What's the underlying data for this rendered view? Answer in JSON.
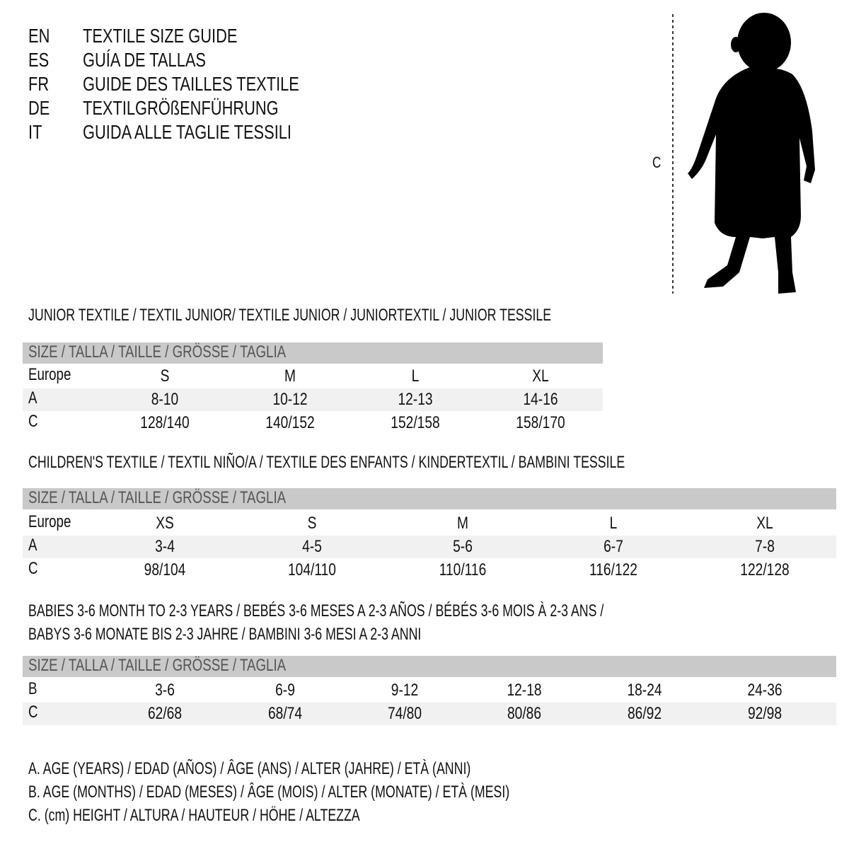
{
  "titles": [
    {
      "code": "EN",
      "text": "TEXTILE SIZE GUIDE"
    },
    {
      "code": "ES",
      "text": "GUÍA DE TALLAS"
    },
    {
      "code": "FR",
      "text": "GUIDE DES TAILLES TEXTILE"
    },
    {
      "code": "DE",
      "text": "TEXTILGRÖßENFÜHRUNG"
    },
    {
      "code": "IT",
      "text": "GUIDA ALLE TAGLIE TESSILI"
    }
  ],
  "figure": {
    "measure_label": "C",
    "icon": "child-silhouette-icon"
  },
  "colors": {
    "header_row": "#c9c9c9",
    "shaded_row": "#f1f1f1"
  },
  "tables": [
    {
      "heading": "JUNIOR TEXTILE / TEXTIL JUNIOR/ TEXTILE JUNIOR / JUNIORTEXTIL / JUNIOR TESSILE",
      "header": "SIZE / TALLA / TAILLE / GRÖSSE / TAGLIA",
      "rows": [
        {
          "label": "Europe",
          "values": [
            "S",
            "M",
            "L",
            "XL"
          ]
        },
        {
          "label": "A",
          "values": [
            "8-10",
            "10-12",
            "12-13",
            "14-16"
          ]
        },
        {
          "label": "C",
          "values": [
            "128/140",
            "140/152",
            "152/158",
            "158/170"
          ]
        }
      ]
    },
    {
      "heading": "CHILDREN'S TEXTILE / TEXTIL NIÑO/A / TEXTILE DES ENFANTS / KINDERTEXTIL / BAMBINI TESSILE",
      "header": "SIZE / TALLA / TAILLE / GRÖSSE / TAGLIA",
      "rows": [
        {
          "label": "Europe",
          "values": [
            "XS",
            "S",
            "M",
            "L",
            "XL"
          ]
        },
        {
          "label": "A",
          "values": [
            "3-4",
            "4-5",
            "5-6",
            "6-7",
            "7-8"
          ]
        },
        {
          "label": "C",
          "values": [
            "98/104",
            "104/110",
            "110/116",
            "116/122",
            "122/128"
          ]
        }
      ]
    },
    {
      "heading": "BABIES 3-6 MONTH TO 2-3 YEARS / BEBÉS 3-6 MESES A 2-3 AÑOS / BÉBÉS 3-6 MOIS À 2-3 ANS /",
      "heading2": "BABYS 3-6 MONATE BIS 2-3 JAHRE / BAMBINI 3-6 MESI A 2-3 ANNI",
      "header": "SIZE / TALLA / TAILLE / GRÖSSE / TAGLIA",
      "rows": [
        {
          "label": "B",
          "values": [
            "3-6",
            "6-9",
            "9-12",
            "12-18",
            "18-24",
            "24-36"
          ]
        },
        {
          "label": "C",
          "values": [
            "62/68",
            "68/74",
            "74/80",
            "80/86",
            "86/92",
            "92/98"
          ]
        }
      ]
    }
  ],
  "legend": [
    "A. AGE (YEARS) / EDAD (AÑOS) / ÂGE (ANS) / ALTER (JAHRE) / ETÀ (ANNI)",
    "B. AGE (MONTHS) / EDAD (MESES) / ÂGE (MOIS) / ALTER (MONATE) / ETÀ (MESI)",
    "C. (cm) HEIGHT / ALTURA / HAUTEUR / HÖHE / ALTEZZA"
  ]
}
